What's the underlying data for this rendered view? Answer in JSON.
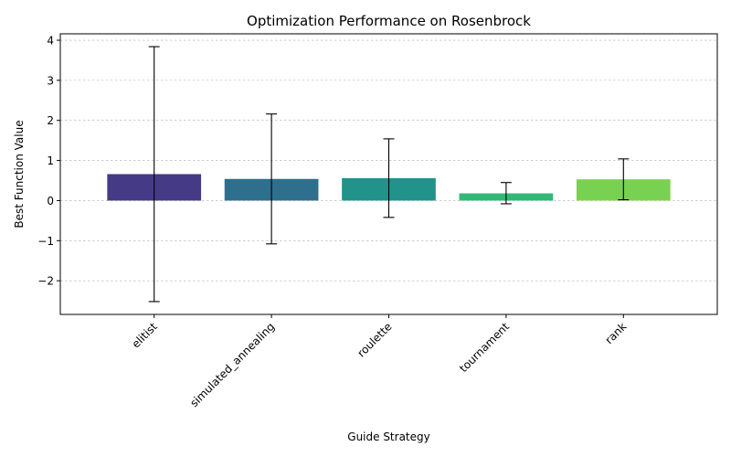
{
  "chart_data": {
    "type": "bar",
    "title": "Optimization Performance on Rosenbrock",
    "xlabel": "Guide Strategy",
    "ylabel": "Best Function Value",
    "categories": [
      "elitist",
      "simulated_annealing",
      "roulette",
      "tournament",
      "rank"
    ],
    "values": [
      0.66,
      0.54,
      0.56,
      0.18,
      0.53
    ],
    "error_low": [
      -2.52,
      -1.08,
      -0.42,
      -0.08,
      0.02
    ],
    "error_high": [
      3.84,
      2.16,
      1.54,
      0.45,
      1.04
    ],
    "colors": [
      "#453a85",
      "#2e6f8e",
      "#21938b",
      "#32b876",
      "#79d151"
    ],
    "ylim": [
      -2.84,
      4.16
    ],
    "yticks": [
      -2,
      -1,
      0,
      1,
      2,
      3,
      4
    ],
    "ytick_labels": [
      "−2",
      "−1",
      "0",
      "1",
      "2",
      "3",
      "4"
    ],
    "grid": "y-dashed",
    "xtick_rotation": 45
  }
}
